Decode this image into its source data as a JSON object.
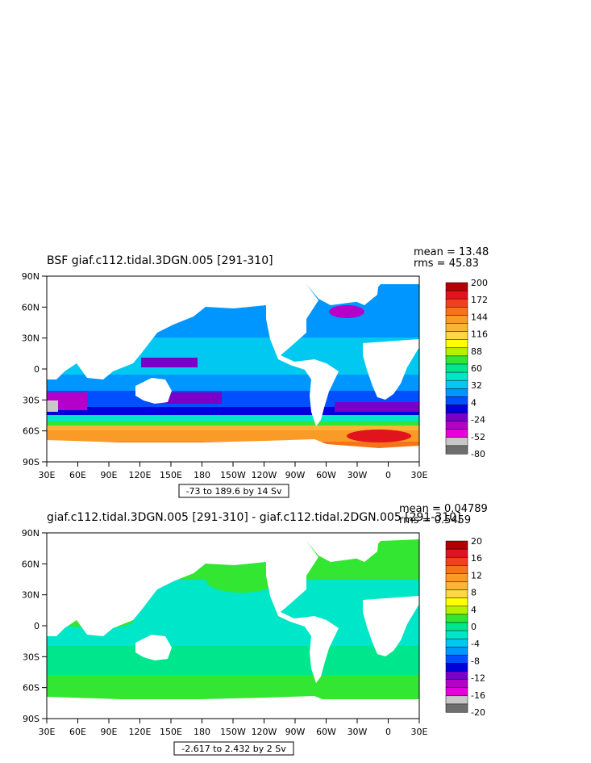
{
  "chart_data": [
    {
      "type": "heatmap",
      "title": "BSF giaf.c112.tidal.3DGN.005 [291-310]",
      "stats": {
        "mean": "mean = 13.48",
        "rms": "rms = 45.83"
      },
      "xlabel": "",
      "ylabel": "",
      "xticks": [
        "30E",
        "60E",
        "90E",
        "120E",
        "150E",
        "180",
        "150W",
        "120W",
        "90W",
        "60W",
        "30W",
        "0",
        "30E"
      ],
      "yticks": [
        "90N",
        "60N",
        "30N",
        "0",
        "30S",
        "60S",
        "90S"
      ],
      "range_label": "-73 to 189.6 by 14 Sv",
      "colorbar": {
        "labels": [
          "200",
          "172",
          "144",
          "116",
          "88",
          "60",
          "32",
          "4",
          "-24",
          "-52",
          "-80"
        ],
        "colors": [
          "#b40000",
          "#e1141e",
          "#f0411e",
          "#f57319",
          "#fa9b28",
          "#fab437",
          "#ffd746",
          "#ffff00",
          "#b4f000",
          "#32e632",
          "#00e68c",
          "#00e6c8",
          "#00c8f0",
          "#0096ff",
          "#0050ff",
          "#0000dc",
          "#7800c8",
          "#b400c8",
          "#e600dc",
          "#c8c8c8",
          "#6e6e6e"
        ]
      }
    },
    {
      "type": "heatmap",
      "title": "giaf.c112.tidal.3DGN.005 [291-310] - giaf.c112.tidal.2DGN.005 [291-310]",
      "stats": {
        "mean": "mean = 0.04789",
        "rms": "rms = 0.5459"
      },
      "xlabel": "",
      "ylabel": "",
      "xticks": [
        "30E",
        "60E",
        "90E",
        "120E",
        "150E",
        "180",
        "150W",
        "120W",
        "90W",
        "60W",
        "30W",
        "0",
        "30E"
      ],
      "yticks": [
        "90N",
        "60N",
        "30N",
        "0",
        "30S",
        "60S",
        "90S"
      ],
      "range_label": "-2.617 to 2.432 by 2 Sv",
      "colorbar": {
        "labels": [
          "20",
          "16",
          "12",
          "8",
          "4",
          "0",
          "-4",
          "-8",
          "-12",
          "-16",
          "-20"
        ],
        "colors": [
          "#b40000",
          "#e1141e",
          "#f0411e",
          "#f57319",
          "#fa9b28",
          "#fab437",
          "#ffd746",
          "#ffff00",
          "#b4f000",
          "#32e632",
          "#00e68c",
          "#00e6c8",
          "#00c8f0",
          "#0096ff",
          "#0050ff",
          "#0000dc",
          "#7800c8",
          "#b400c8",
          "#e600dc",
          "#c8c8c8",
          "#6e6e6e"
        ]
      }
    }
  ]
}
